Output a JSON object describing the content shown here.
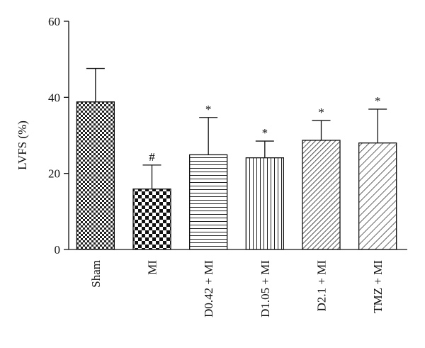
{
  "chart_data": {
    "type": "bar",
    "title": "",
    "xlabel": "",
    "ylabel": "LVFS (%)",
    "ylim": [
      0,
      60
    ],
    "yticks": [
      0,
      20,
      40,
      60
    ],
    "grid": false,
    "legend": "none",
    "categories": [
      "Sham",
      "MI",
      "D0.42 + MI",
      "D1.05 + MI",
      "D2.1 + MI",
      "TMZ + MI"
    ],
    "values": [
      38.8,
      15.9,
      24.9,
      24.1,
      28.7,
      28.0
    ],
    "errors": [
      8.8,
      6.3,
      9.8,
      4.4,
      5.2,
      8.9
    ],
    "annotations": [
      "",
      "#",
      "*",
      "*",
      "*",
      "*"
    ],
    "patterns": [
      "checker-fine",
      "checker-coarse",
      "horizontal-lines",
      "vertical-lines",
      "diagonal-dense",
      "diagonal-sparse"
    ]
  }
}
